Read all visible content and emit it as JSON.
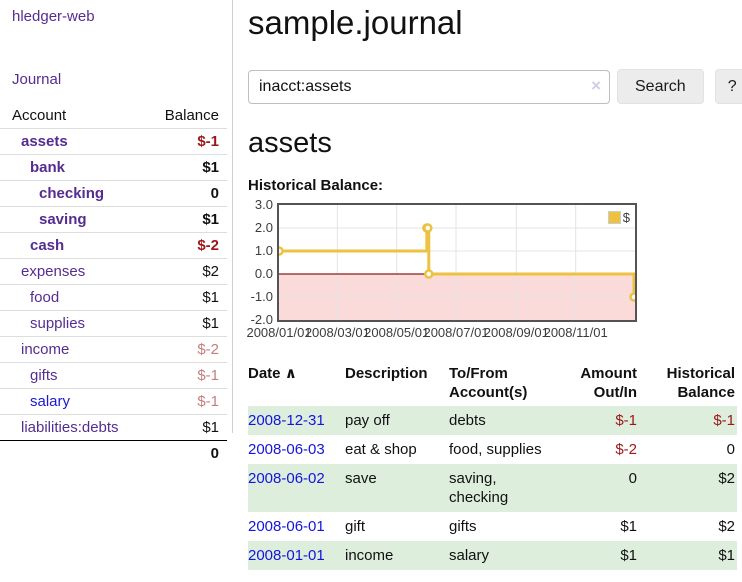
{
  "app": {
    "title": "hledger-web"
  },
  "sidebar": {
    "journal_link": "Journal",
    "table": {
      "account_header": "Account",
      "balance_header": "Balance",
      "rows": [
        {
          "account": "assets",
          "balance": "$-1",
          "indent": 1,
          "bold": true,
          "link": "purple",
          "balance_style": "neg-strong"
        },
        {
          "account": "bank",
          "balance": "$1",
          "indent": 2,
          "bold": true,
          "link": "purple",
          "balance_style": "plain"
        },
        {
          "account": "checking",
          "balance": "0",
          "indent": 3,
          "bold": true,
          "link": "purple",
          "balance_style": "plain"
        },
        {
          "account": "saving",
          "balance": "$1",
          "indent": 3,
          "bold": true,
          "link": "purple",
          "balance_style": "plain"
        },
        {
          "account": "cash",
          "balance": "$-2",
          "indent": 2,
          "bold": true,
          "link": "purple",
          "balance_style": "neg-strong"
        },
        {
          "account": "expenses",
          "balance": "$2",
          "indent": 1,
          "bold": false,
          "link": "purple",
          "balance_style": "plain"
        },
        {
          "account": "food",
          "balance": "$1",
          "indent": 2,
          "bold": false,
          "link": "purple",
          "balance_style": "plain"
        },
        {
          "account": "supplies",
          "balance": "$1",
          "indent": 2,
          "bold": false,
          "link": "purple",
          "balance_style": "plain"
        },
        {
          "account": "income",
          "balance": "$-2",
          "indent": 1,
          "bold": false,
          "link": "purple",
          "balance_style": "neg-faded"
        },
        {
          "account": "gifts",
          "balance": "$-1",
          "indent": 2,
          "bold": false,
          "link": "purple",
          "balance_style": "neg-faded"
        },
        {
          "account": "salary",
          "balance": "$-1",
          "indent": 2,
          "bold": false,
          "link": "blue",
          "balance_style": "neg-faded"
        },
        {
          "account": "liabilities:debts",
          "balance": "$1",
          "indent": 1,
          "bold": false,
          "link": "purple",
          "balance_style": "plain"
        }
      ],
      "total": "0"
    }
  },
  "main": {
    "title": "sample.journal",
    "search": {
      "value": "inacct:assets",
      "clear_icon": "×",
      "button_label": "Search",
      "help_label": "?"
    },
    "account_heading": "assets",
    "chart_label": "Historical Balance:"
  },
  "chart_data": {
    "type": "line",
    "step": true,
    "title": "Historical Balance:",
    "series": [
      {
        "name": "$",
        "color": "#edc240",
        "points": [
          [
            "2008-01-01",
            1
          ],
          [
            "2008-06-01",
            2
          ],
          [
            "2008-06-02",
            2
          ],
          [
            "2008-06-03",
            0
          ],
          [
            "2008-12-31",
            -1
          ]
        ]
      }
    ],
    "x_range": [
      "2008-01-01",
      "2009-01-01"
    ],
    "ylim": [
      -2,
      3
    ],
    "y_ticks": [
      "3.0",
      "2.0",
      "1.0",
      "0.0",
      "-1.0",
      "-2.0"
    ],
    "x_ticks": [
      "2008/01/01",
      "2008/03/01",
      "2008/05/01",
      "2008/07/01",
      "2008/09/01",
      "2008/11/01"
    ],
    "grid": true,
    "legend_position": "top-right",
    "zero_line_color": "#8b1a1a",
    "negative_region_color": "#fbdada",
    "gridline_color": "#e4e4e4"
  },
  "register_table": {
    "headers": {
      "date": "Date",
      "sort_icon": "∧",
      "description": "Description",
      "tofrom": "To/From Account(s)",
      "amount": "Amount Out/In",
      "historical": "Historical Balance"
    },
    "rows": [
      {
        "date": "2008-12-31",
        "description": "pay off",
        "accounts": "debts",
        "amount": "$-1",
        "balance": "$-1",
        "amount_style": "neg-strong",
        "balance_style": "neg-strong",
        "shaded": true
      },
      {
        "date": "2008-06-03",
        "description": "eat & shop",
        "accounts": "food, supplies",
        "amount": "$-2",
        "balance": "0",
        "amount_style": "neg-strong",
        "balance_style": "plain",
        "shaded": false
      },
      {
        "date": "2008-06-02",
        "description": "save",
        "accounts": "saving,\nchecking",
        "amount": "0",
        "balance": "$2",
        "amount_style": "plain",
        "balance_style": "plain",
        "shaded": true
      },
      {
        "date": "2008-06-01",
        "description": "gift",
        "accounts": "gifts",
        "amount": "$1",
        "balance": "$2",
        "amount_style": "plain",
        "balance_style": "plain",
        "shaded": false
      },
      {
        "date": "2008-01-01",
        "description": "income",
        "accounts": "salary",
        "amount": "$1",
        "balance": "$1",
        "amount_style": "plain",
        "balance_style": "plain",
        "shaded": true
      }
    ]
  },
  "colors": {
    "link_purple": "#552d90",
    "link_blue": "#1414dd",
    "negative_strong": "#9d1717",
    "negative_faded": "#c47e7e",
    "row_green": "#ddeedd",
    "series_gold": "#edc240",
    "chart_negative_fill": "#fbdada",
    "zero_line": "#8b1a1a"
  }
}
